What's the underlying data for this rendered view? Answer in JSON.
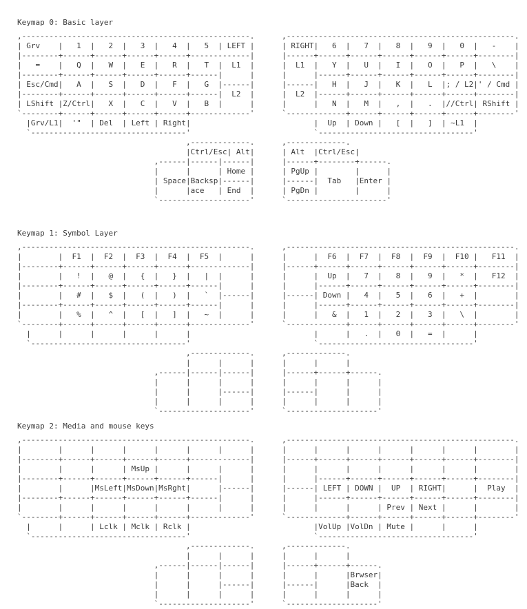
{
  "page": {
    "background": "#ffffff",
    "text_color": "#3b3b3b"
  },
  "sections": [
    {
      "title": "Keymap 0: Basic layer",
      "art": [
        ",--------------------------------------------------.      ,--------------------------------------------------.",
        "| Grv    |   1  |   2  |   3  |   4  |   5  | LEFT |      | RIGHT|   6  |   7  |   8  |   9  |   0  |   -    |",
        "|--------+------+------+------+------+-------------|      |------+------+------+------+------+------+--------|",
        "|   =    |   Q  |   W  |   E  |   R  |   T  |  L1  |      |  L1  |   Y  |   U  |   I  |   O  |   P  |   \\    |",
        "|--------+------+------+------+------+------|      |      |      |------+------+------+------+------+--------|",
        "| Esc/Cmd|   A  |   S  |   D  |   F  |   G  |------|      |------|   H  |   J  |   K  |   L  |; / L2|' / Cmd |",
        "|--------+------+------+------+------+------|  L2  |      |  L2  |------+------+------+------+------+--------|",
        "| LShift |Z/Ctrl|   X  |   C  |   V  |   B  |      |      |      |   N  |   M  |   ,  |   .  |//Ctrl| RShift |",
        "`--------+------+------+------+------+-------------'      `-------------+------+------+------+------+--------'",
        "  |Grv/L1|  '\"  | Del  | Left | Right|                           |  Up  | Down |   [  |   ]  | ~L1  |",
        "  `----------------------------------'                           `----------------------------------'",
        "                                     ,-------------.      ,-------------.",
        "                                     |Ctrl/Esc| Alt|      | Alt  |Ctrl/Esc|",
        "                              ,------|------|------|      |------+--------+------.",
        "                              |      |      | Home |      | PgUp |        |      |",
        "                              | Space|Backsp|------|      |------|  Tab   |Enter |",
        "                              |      |ace   | End  |      | PgDn |        |      |",
        "                              `--------------------'      `----------------------'"
      ]
    },
    {
      "title": "Keymap 1: Symbol Layer",
      "art": [
        ",--------------------------------------------------.      ,--------------------------------------------------.",
        "|        |  F1  |  F2  |  F3  |  F4  |  F5  |      |      |      |  F6  |  F7  |  F8  |  F9  |  F10 |   F11  |",
        "|--------+------+------+------+------+-------------|      |------+------+------+------+------+------+--------|",
        "|        |   !  |   @  |   {  |   }  |   |  |      |      |      |  Up  |   7  |   8  |   9  |   *  |   F12  |",
        "|--------+------+------+------+------+------|      |      |      |------+------+------+------+------+--------|",
        "|        |   #  |   $  |   (  |   )  |   `  |------|      |------| Down |   4  |   5  |   6  |   +  |        |",
        "|--------+------+------+------+------+------|      |      |      |------+------+------+------+------+--------|",
        "|        |   %  |   ^  |   [  |   ]  |   ~  |      |      |      |   &  |   1  |   2  |   3  |   \\  |        |",
        "`--------+------+------+------+------+-------------'      `-------------+------+------+------+------+--------'",
        "  |      |      |      |      |      |                           |      |   .  |   0  |   =  |      |",
        "  `----------------------------------'                           `----------------------------------'",
        "                                     ,-------------.      ,-------------.",
        "                                     |      |      |      |      |      |",
        "                              ,------|------|------|      |------+------+------.",
        "                              |      |      |      |      |      |      |      |",
        "                              |      |      |------|      |------|      |      |",
        "                              |      |      |      |      |      |      |      |",
        "                              `--------------------'      `--------------------'"
      ]
    },
    {
      "title": "Keymap 2: Media and mouse keys",
      "art": [
        ",--------------------------------------------------.      ,--------------------------------------------------.",
        "|        |      |      |      |      |      |      |      |      |      |      |      |      |      |        |",
        "|--------+------+------+------+------+-------------|      |------+------+------+------+------+------+--------|",
        "|        |      |      | MsUp |      |      |      |      |      |      |      |      |      |      |        |",
        "|--------+------+------+------+------+------|      |      |      |------+------+------+------+------+--------|",
        "|        |      |MsLeft|MsDown|MsRght|      |------|      |------| LEFT | DOWN |  UP  | RIGHT|      |  Play  |",
        "|--------+------+------+------+------+------|      |      |      |------+------+------+------+------+--------|",
        "|        |      |      |      |      |      |      |      |      |      |      | Prev | Next |      |        |",
        "`--------+------+------+------+------+-------------'      `-------------+------+------+------+------+--------'",
        "  |      |      | Lclk | Mclk | Rclk |                           |VolUp |VolDn | Mute |      |      |",
        "  `----------------------------------'                           `----------------------------------'",
        "                                     ,-------------.      ,-------------.",
        "                                     |      |      |      |      |      |",
        "                              ,------|------|------|      |------+------+------.",
        "                              |      |      |      |      |      |      |Brwser|",
        "                              |      |      |------|      |------|      |Back  |",
        "                              |      |      |      |      |      |      |      |",
        "                              `--------------------'      `--------------------'"
      ]
    }
  ]
}
